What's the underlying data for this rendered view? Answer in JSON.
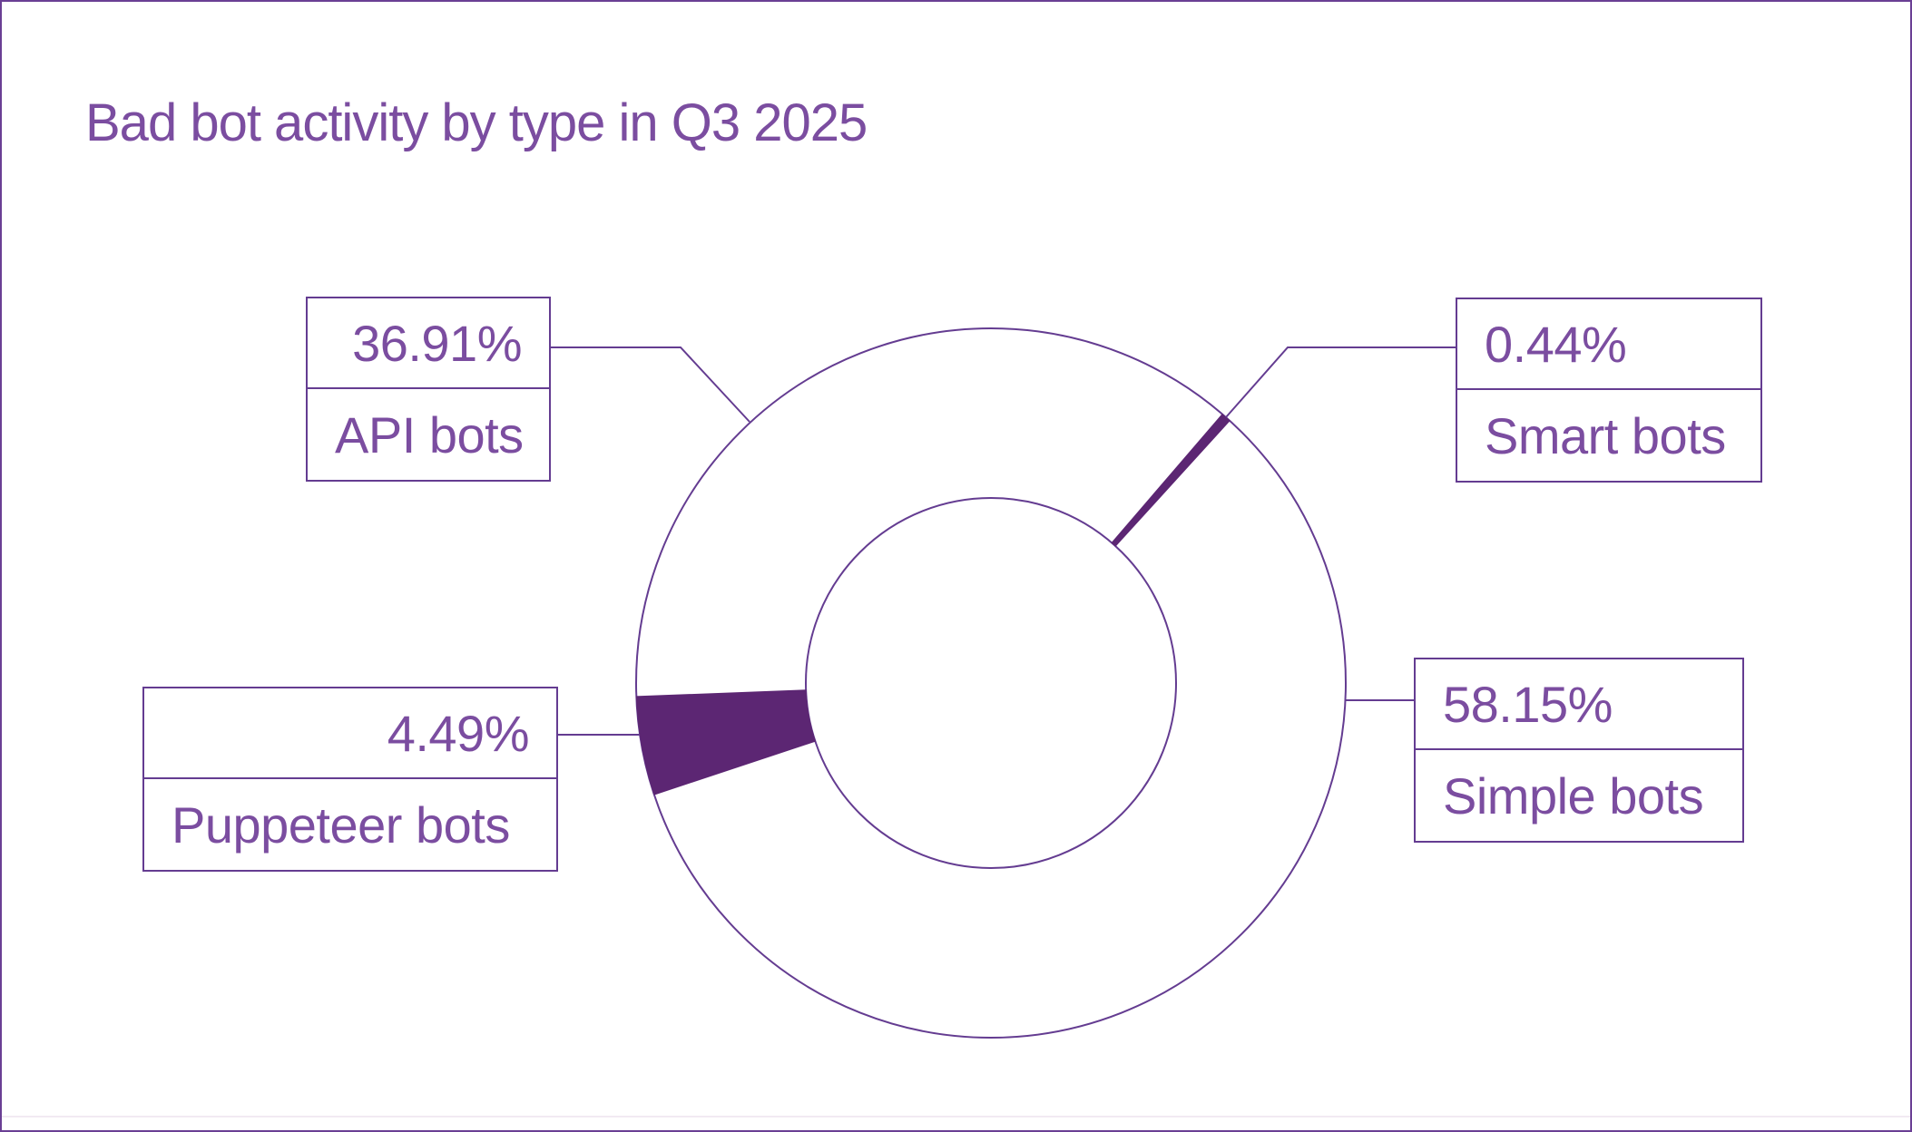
{
  "page": {
    "background": "#ffffff",
    "border_color": "#6a3f94"
  },
  "chart_data": {
    "type": "pie",
    "variant": "donut",
    "title": "Bad bot activity by type in Q3 2025",
    "unit": "%",
    "legend_position": "none",
    "slices": [
      {
        "label": "API bots",
        "value": 36.91,
        "display": "36.91%",
        "emphasized": false
      },
      {
        "label": "Smart bots",
        "value": 0.44,
        "display": "0.44%",
        "emphasized": true
      },
      {
        "label": "Simple bots",
        "value": 58.15,
        "display": "58.15%",
        "emphasized": false
      },
      {
        "label": "Puppeteer bots",
        "value": 4.49,
        "display": "4.49%",
        "emphasized": true
      }
    ],
    "colors": {
      "accent": "#5c2673",
      "stroke": "#643c91",
      "text": "#7b4da0"
    }
  }
}
